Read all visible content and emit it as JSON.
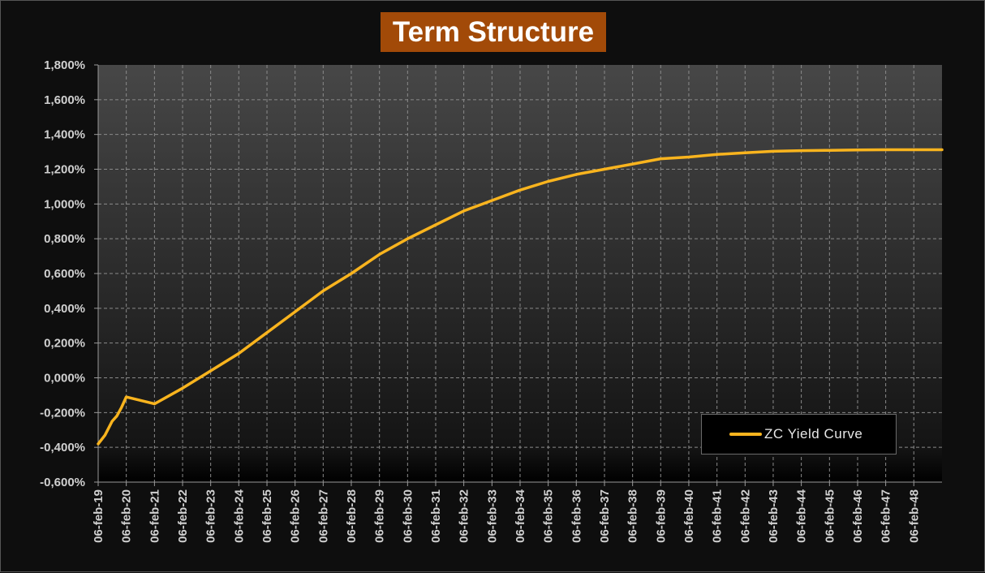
{
  "chart_data": {
    "type": "line",
    "title": "Term Structure",
    "xlabel": "",
    "ylabel": "",
    "ylim": [
      -0.6,
      1.8
    ],
    "y_tick_step": 0.2,
    "y_tick_labels": [
      "1,800%",
      "1,600%",
      "1,400%",
      "1,200%",
      "1,000%",
      "0,800%",
      "0,600%",
      "0,400%",
      "0,200%",
      "0,000%",
      "-0,200%",
      "-0,400%",
      "-0,600%"
    ],
    "x_tick_labels": [
      "06-feb-19",
      "06-feb-20",
      "06-feb-21",
      "06-feb-22",
      "06-feb-23",
      "06-feb-24",
      "06-feb-25",
      "06-feb-26",
      "06-feb-27",
      "06-feb-28",
      "06-feb-29",
      "06-feb-30",
      "06-feb-31",
      "06-feb-32",
      "06-feb-33",
      "06-feb-34",
      "06-feb-35",
      "06-feb-36",
      "06-feb-37",
      "06-feb-38",
      "06-feb-39",
      "06-feb-40",
      "06-feb-41",
      "06-feb-42",
      "06-feb-43",
      "06-feb-44",
      "06-feb-45",
      "06-feb-46",
      "06-feb-47",
      "06-feb-48"
    ],
    "xlim": [
      "06-feb-19",
      "06-feb-49"
    ],
    "grid": true,
    "legend_position": "bottom-right",
    "series": [
      {
        "name": "ZC Yield Curve",
        "color": "#f9b41e",
        "x": [
          "06-feb-19",
          "06-may-19",
          "06-aug-19",
          "06-oct-19",
          "06-dec-19",
          "06-feb-20",
          "06-feb-21",
          "06-feb-22",
          "06-feb-23",
          "06-feb-24",
          "06-feb-25",
          "06-feb-26",
          "06-feb-27",
          "06-feb-28",
          "06-feb-29",
          "06-feb-30",
          "06-feb-31",
          "06-feb-32",
          "06-feb-33",
          "06-feb-34",
          "06-feb-35",
          "06-feb-36",
          "06-feb-37",
          "06-feb-38",
          "06-feb-39",
          "06-feb-40",
          "06-feb-41",
          "06-feb-42",
          "06-feb-43",
          "06-feb-44",
          "06-feb-45",
          "06-feb-46",
          "06-feb-47",
          "06-feb-48",
          "06-feb-49"
        ],
        "values": [
          -0.38,
          -0.33,
          -0.25,
          -0.22,
          -0.17,
          -0.11,
          -0.15,
          -0.06,
          0.04,
          0.14,
          0.26,
          0.38,
          0.5,
          0.6,
          0.71,
          0.8,
          0.88,
          0.96,
          1.02,
          1.08,
          1.13,
          1.17,
          1.2,
          1.23,
          1.26,
          1.27,
          1.285,
          1.295,
          1.303,
          1.307,
          1.309,
          1.311,
          1.312,
          1.312,
          1.312
        ]
      }
    ]
  }
}
